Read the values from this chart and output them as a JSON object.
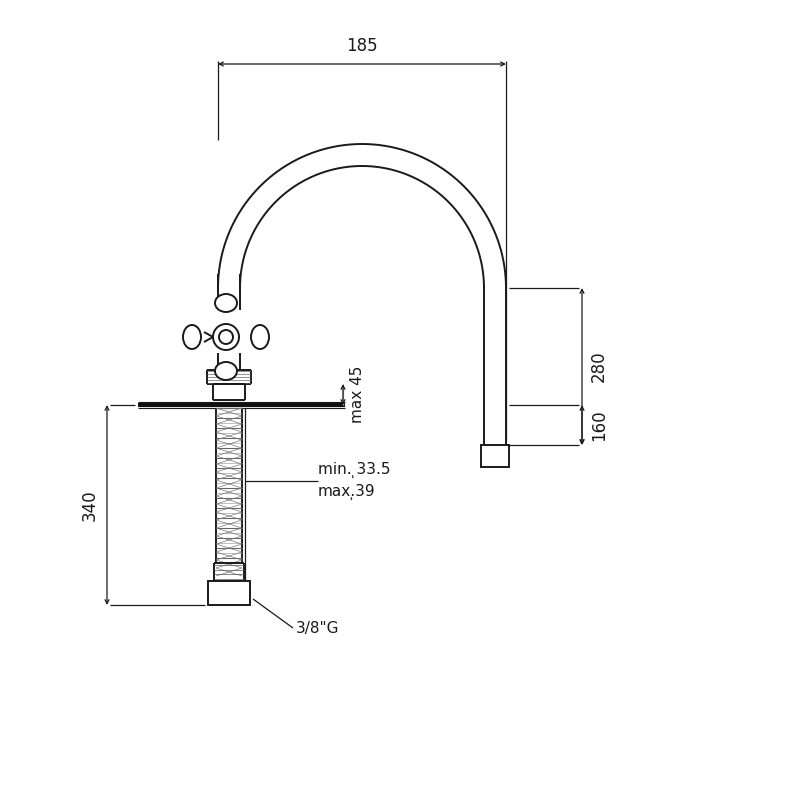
{
  "bg_color": "#ffffff",
  "line_color": "#1a1a1a",
  "fig_width": 8.0,
  "fig_height": 8.0,
  "dpi": 100,
  "dim_185_label": "185",
  "dim_280_label": "280",
  "dim_160_label": "160",
  "dim_45_label": "max 45",
  "dim_340_label": "340",
  "dim_min_label": "min. ̹33.5",
  "dim_max_label": "max.̹39",
  "dim_38g_label": "3/8\"G",
  "lw_main": 1.4,
  "lw_dim": 0.9,
  "lw_thick": 3.0,
  "fontsize_dim": 12,
  "fontsize_annot": 11
}
